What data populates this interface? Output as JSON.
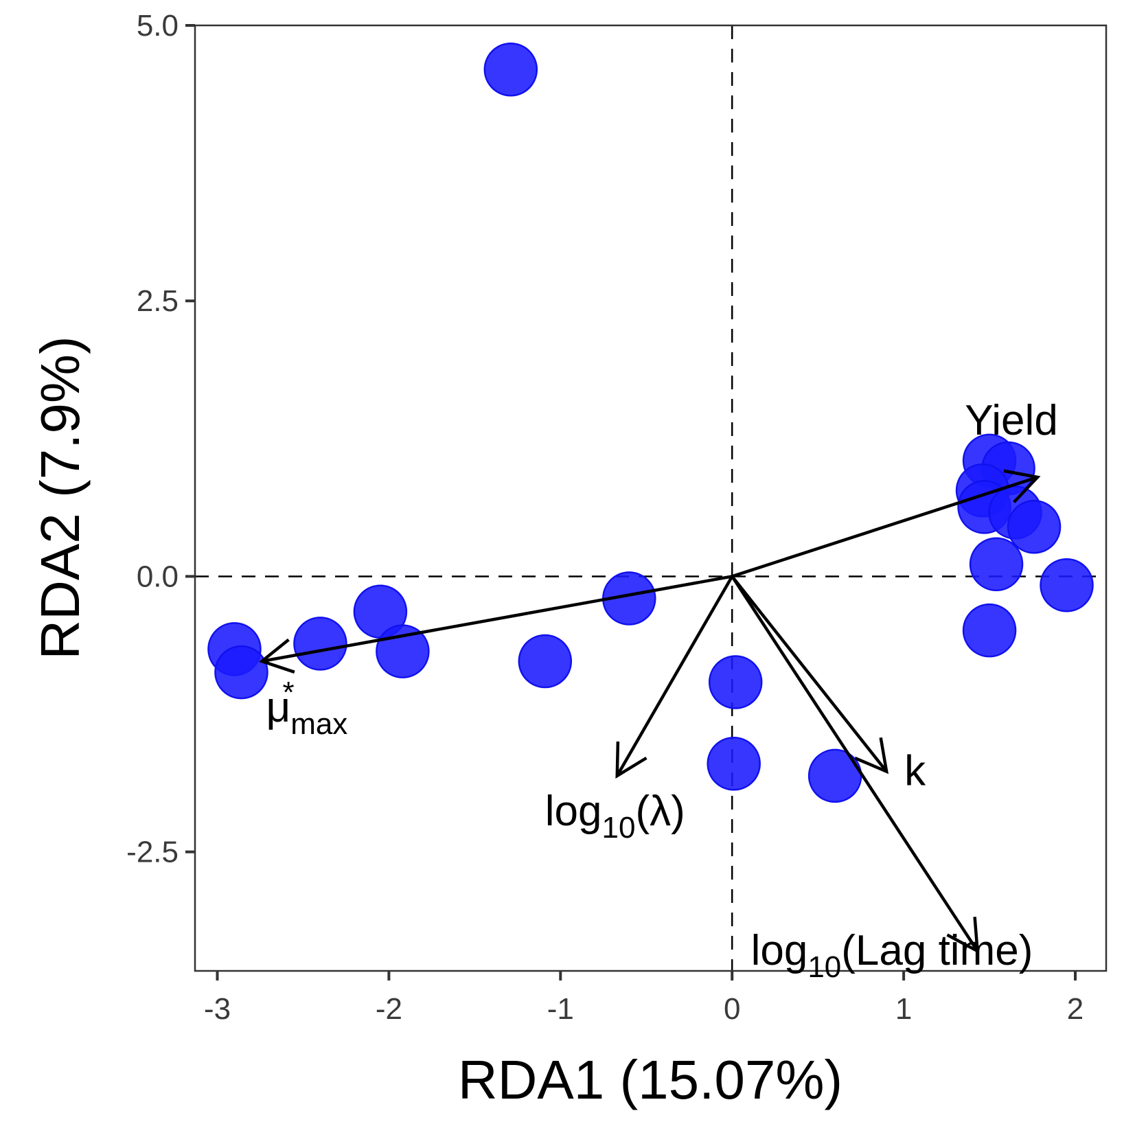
{
  "chart_data": {
    "type": "scatter",
    "xlabel": "RDA1 (15.07%)",
    "ylabel": "RDA2 (7.9%)",
    "xlim": [
      -3.13,
      2.18
    ],
    "ylim": [
      -3.58,
      5.0
    ],
    "x_ticks": [
      -3,
      -2,
      -1,
      0,
      1,
      2
    ],
    "x_tick_labels": [
      "-3",
      "-2",
      "-1",
      "0",
      "1",
      "2"
    ],
    "y_ticks": [
      -2.5,
      0.0,
      2.5,
      5.0
    ],
    "y_tick_labels": [
      "-2.5",
      "0.0",
      "2.5",
      "5.0"
    ],
    "grid": false,
    "reference_lines": {
      "x": 0,
      "y": 0,
      "style": "dashed"
    },
    "point_color": "#1a1aff",
    "arrow_color": "#000000",
    "points": [
      {
        "x": -1.29,
        "y": 4.6
      },
      {
        "x": -2.9,
        "y": -0.66
      },
      {
        "x": -2.86,
        "y": -0.87
      },
      {
        "x": -2.4,
        "y": -0.61
      },
      {
        "x": -2.05,
        "y": -0.32
      },
      {
        "x": -1.92,
        "y": -0.68
      },
      {
        "x": -1.09,
        "y": -0.77
      },
      {
        "x": -0.6,
        "y": -0.2
      },
      {
        "x": 0.02,
        "y": -0.96
      },
      {
        "x": 0.01,
        "y": -1.7
      },
      {
        "x": 0.6,
        "y": -1.81
      },
      {
        "x": 1.5,
        "y": 1.05
      },
      {
        "x": 1.61,
        "y": 0.98
      },
      {
        "x": 1.46,
        "y": 0.78
      },
      {
        "x": 1.47,
        "y": 0.63
      },
      {
        "x": 1.65,
        "y": 0.58
      },
      {
        "x": 1.76,
        "y": 0.45
      },
      {
        "x": 1.54,
        "y": 0.11
      },
      {
        "x": 1.95,
        "y": -0.08
      },
      {
        "x": 1.5,
        "y": -0.49
      }
    ],
    "arrows": [
      {
        "label": "Yield",
        "x": 1.78,
        "y": 0.9
      },
      {
        "label_base": "μ",
        "label_sub": "max",
        "label_sup": "*",
        "x": -2.74,
        "y": -0.77
      },
      {
        "label_base": "log",
        "label_sub": "10",
        "label_rest": "(λ)",
        "x": -0.67,
        "y": -1.81
      },
      {
        "label": "k",
        "x": 0.9,
        "y": -1.77
      },
      {
        "label_base": "log",
        "label_sub": "10",
        "label_rest": "(Lag time)",
        "x": 1.43,
        "y": -3.4
      }
    ]
  }
}
